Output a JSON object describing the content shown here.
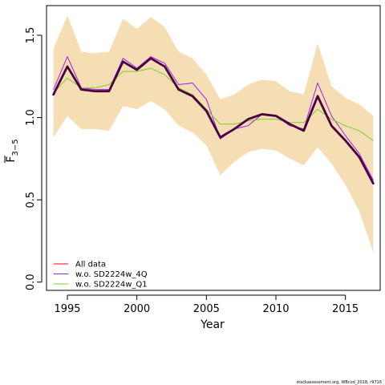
{
  "chart_data": {
    "type": "line",
    "xlabel": "Year",
    "ylabel_main": "F",
    "ylabel_sub": "3−5",
    "xlim": [
      1993.5,
      2017.5
    ],
    "ylim": [
      -0.05,
      1.68
    ],
    "xticks": [
      1995,
      2000,
      2005,
      2010,
      2015
    ],
    "yticks": [
      0.0,
      0.5,
      1.0,
      1.5
    ],
    "ytick_labels": [
      "0.0",
      "0.5",
      "1.0",
      "1.5"
    ],
    "grid": false,
    "legend_position": "bottom-left",
    "x": [
      1994,
      1995,
      1996,
      1997,
      1998,
      1999,
      2000,
      2001,
      2002,
      2003,
      2004,
      2005,
      2006,
      2007,
      2008,
      2009,
      2010,
      2011,
      2012,
      2013,
      2014,
      2015,
      2016,
      2017
    ],
    "band": {
      "color": "#F5DEB3",
      "upper": [
        1.42,
        1.62,
        1.4,
        1.39,
        1.4,
        1.6,
        1.54,
        1.61,
        1.55,
        1.4,
        1.36,
        1.26,
        1.11,
        1.14,
        1.2,
        1.23,
        1.22,
        1.16,
        1.14,
        1.45,
        1.19,
        1.12,
        1.08,
        1.01
      ],
      "lower": [
        0.88,
        1.01,
        0.93,
        0.93,
        0.92,
        1.07,
        1.05,
        1.1,
        1.05,
        0.95,
        0.91,
        0.83,
        0.65,
        0.73,
        0.79,
        0.81,
        0.8,
        0.75,
        0.71,
        0.82,
        0.72,
        0.59,
        0.43,
        0.18
      ]
    },
    "series": [
      {
        "name": "All data",
        "color": "#FF0000",
        "width": 1,
        "values": [
          1.14,
          1.31,
          1.17,
          1.16,
          1.16,
          1.34,
          1.29,
          1.36,
          1.31,
          1.17,
          1.13,
          1.04,
          0.88,
          0.93,
          0.99,
          1.02,
          1.01,
          0.96,
          0.92,
          1.13,
          0.95,
          0.86,
          0.76,
          0.6
        ]
      },
      {
        "name": "w.o. SD2224w_4Q",
        "color": "#A020F0",
        "width": 1,
        "values": [
          1.17,
          1.37,
          1.18,
          1.17,
          1.17,
          1.36,
          1.3,
          1.37,
          1.33,
          1.2,
          1.21,
          1.11,
          0.87,
          0.93,
          0.95,
          1.02,
          1.01,
          0.95,
          0.93,
          1.21,
          1.01,
          0.89,
          0.78,
          0.62
        ]
      },
      {
        "name": "w.o. SD2224w_Q1",
        "color": "#7FCC28",
        "width": 1,
        "values": [
          1.15,
          1.24,
          1.18,
          1.18,
          1.2,
          1.28,
          1.28,
          1.3,
          1.26,
          1.18,
          1.14,
          1.05,
          0.96,
          0.96,
          0.98,
          0.99,
          0.99,
          0.97,
          0.97,
          1.05,
          0.99,
          0.95,
          0.92,
          0.86
        ]
      },
      {
        "name": "",
        "color": "#4B0040",
        "width": 2.8,
        "values": [
          1.14,
          1.31,
          1.17,
          1.16,
          1.16,
          1.34,
          1.29,
          1.36,
          1.31,
          1.17,
          1.13,
          1.04,
          0.88,
          0.93,
          0.99,
          1.02,
          1.01,
          0.96,
          0.92,
          1.13,
          0.95,
          0.86,
          0.76,
          0.6
        ]
      }
    ],
    "legend": [
      {
        "label": "All data",
        "color": "#FF0000"
      },
      {
        "label": "w.o. SD2224w_4Q",
        "color": "#A020F0"
      },
      {
        "label": "w.o. SD2224w_Q1",
        "color": "#7FCC28"
      }
    ]
  },
  "footer": {
    "text": "stockassessment.org, WBcod_2018, r9716"
  }
}
